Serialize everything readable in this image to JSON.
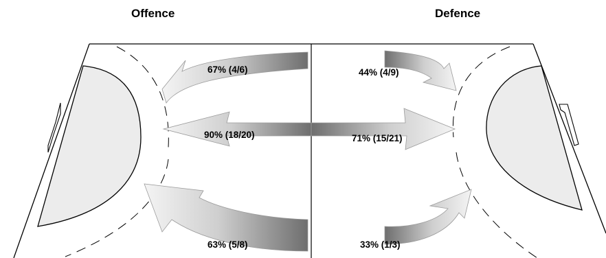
{
  "headers": {
    "offence": "Offence",
    "defence": "Defence"
  },
  "stats": {
    "offence_top": "67% (4/6)",
    "offence_middle": "90% (18/20)",
    "offence_bottom": "63% (5/8)",
    "defence_top": "44% (4/9)",
    "defence_middle": "71% (15/21)",
    "defence_bottom": "33% (1/3)"
  },
  "colors": {
    "arrow_light": "#f2f2f2",
    "arrow_dark": "#6e6e6e",
    "goal_area": "#ececec",
    "lines": "#000000"
  }
}
